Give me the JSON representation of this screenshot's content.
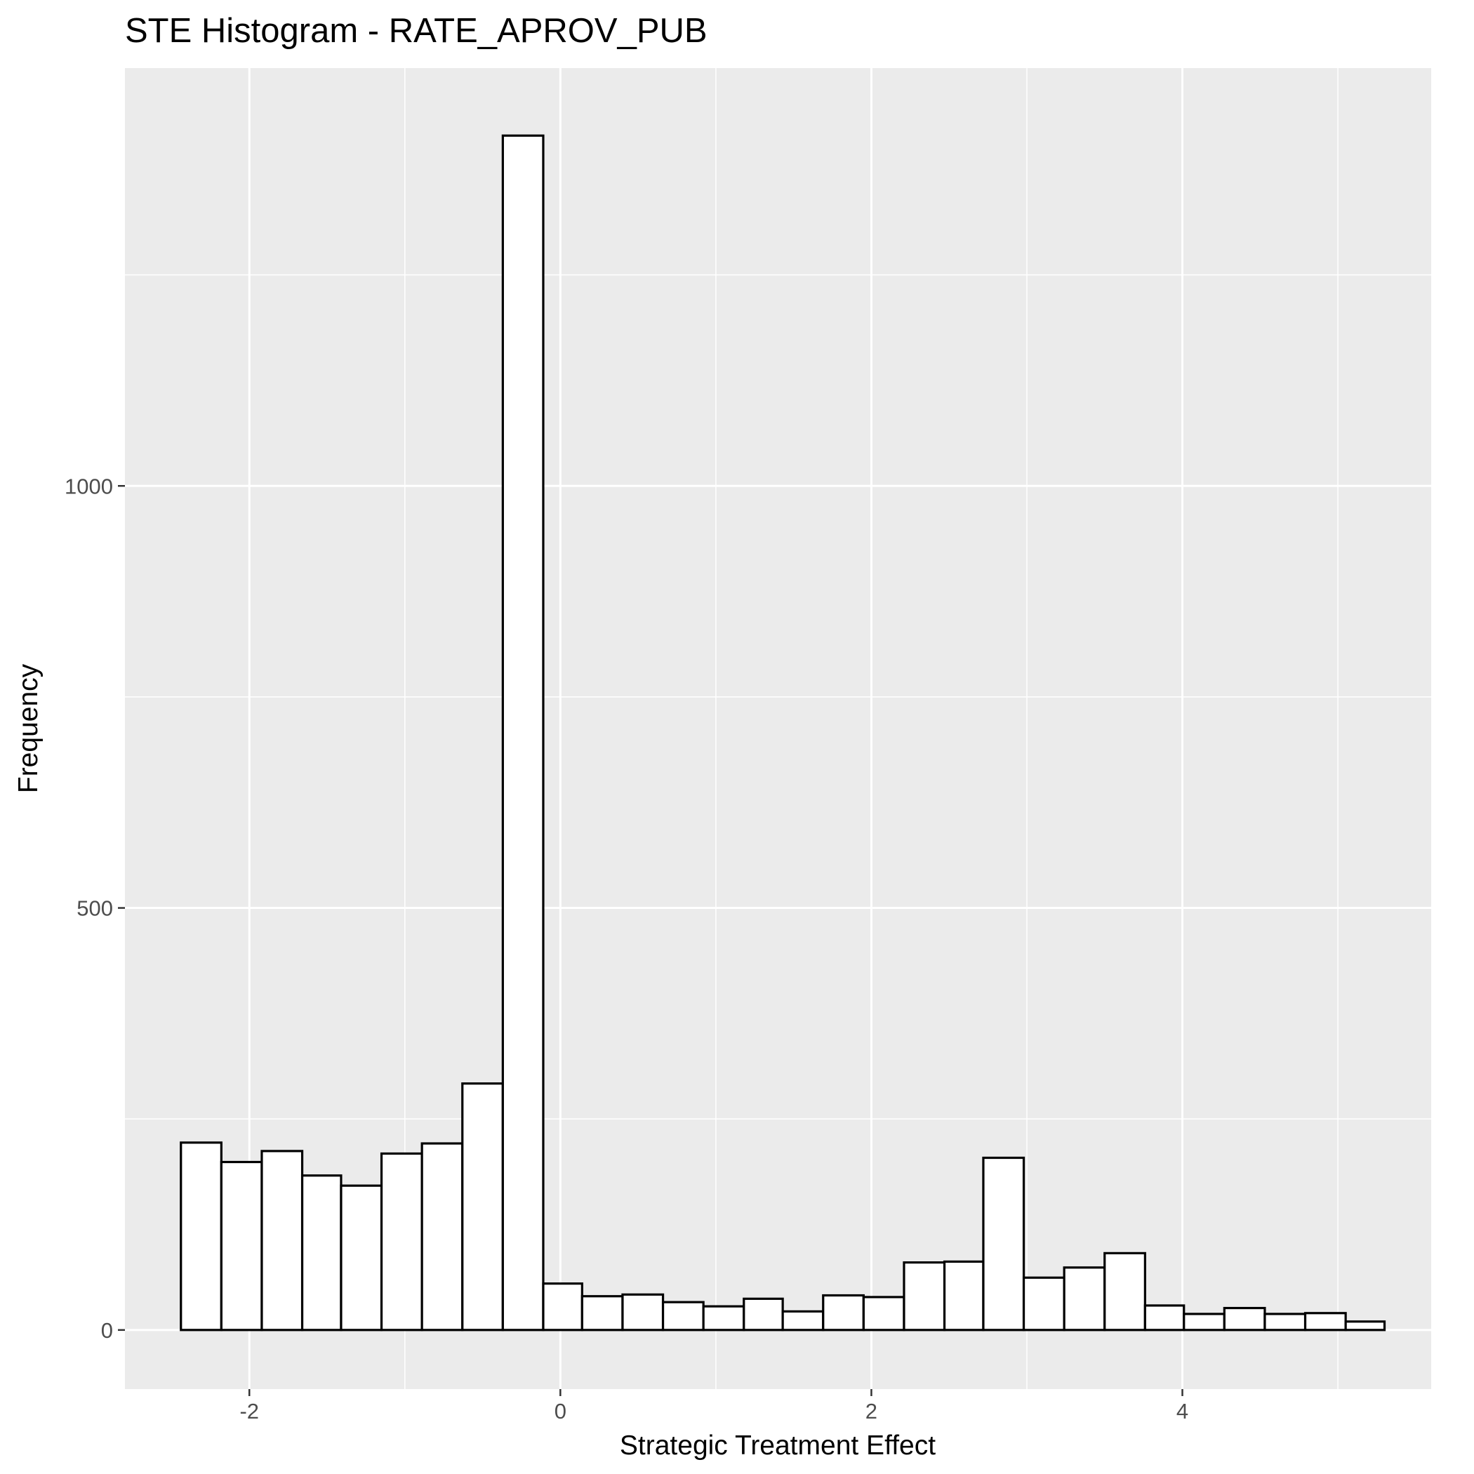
{
  "chart_data": {
    "type": "bar",
    "subtype": "histogram",
    "title": "STE Histogram -  RATE_APROV_PUB",
    "xlabel": "Strategic Treatment Effect",
    "ylabel": "Frequency",
    "x_range": [
      -2.8,
      5.6
    ],
    "y_range": [
      -70,
      1495
    ],
    "x_ticks": [
      -2,
      0,
      2,
      4
    ],
    "x_tick_labels": [
      "-2",
      "0",
      "2",
      "4"
    ],
    "y_ticks": [
      0,
      500,
      1000
    ],
    "y_tick_labels": [
      "0",
      "500",
      "1000"
    ],
    "x_minor_ticks": [
      -1,
      1,
      3,
      5
    ],
    "y_minor_ticks": [
      250,
      750,
      1250
    ],
    "grid": true,
    "bins": [
      {
        "x0": -2.44,
        "x1": -2.18,
        "count": 222
      },
      {
        "x0": -2.18,
        "x1": -1.92,
        "count": 199
      },
      {
        "x0": -1.92,
        "x1": -1.66,
        "count": 212
      },
      {
        "x0": -1.66,
        "x1": -1.41,
        "count": 183
      },
      {
        "x0": -1.41,
        "x1": -1.15,
        "count": 171
      },
      {
        "x0": -1.15,
        "x1": -0.89,
        "count": 209
      },
      {
        "x0": -0.89,
        "x1": -0.63,
        "count": 221
      },
      {
        "x0": -0.63,
        "x1": -0.37,
        "count": 292
      },
      {
        "x0": -0.37,
        "x1": -0.11,
        "count": 1415
      },
      {
        "x0": -0.11,
        "x1": 0.14,
        "count": 55
      },
      {
        "x0": 0.14,
        "x1": 0.4,
        "count": 40
      },
      {
        "x0": 0.4,
        "x1": 0.66,
        "count": 42
      },
      {
        "x0": 0.66,
        "x1": 0.92,
        "count": 33
      },
      {
        "x0": 0.92,
        "x1": 1.18,
        "count": 28
      },
      {
        "x0": 1.18,
        "x1": 1.43,
        "count": 37
      },
      {
        "x0": 1.43,
        "x1": 1.69,
        "count": 22
      },
      {
        "x0": 1.69,
        "x1": 1.95,
        "count": 41
      },
      {
        "x0": 1.95,
        "x1": 2.21,
        "count": 39
      },
      {
        "x0": 2.21,
        "x1": 2.47,
        "count": 80
      },
      {
        "x0": 2.47,
        "x1": 2.72,
        "count": 81
      },
      {
        "x0": 2.72,
        "x1": 2.98,
        "count": 204
      },
      {
        "x0": 2.98,
        "x1": 3.24,
        "count": 62
      },
      {
        "x0": 3.24,
        "x1": 3.5,
        "count": 74
      },
      {
        "x0": 3.5,
        "x1": 3.76,
        "count": 91
      },
      {
        "x0": 3.76,
        "x1": 4.01,
        "count": 29
      },
      {
        "x0": 4.01,
        "x1": 4.27,
        "count": 19
      },
      {
        "x0": 4.27,
        "x1": 4.53,
        "count": 26
      },
      {
        "x0": 4.53,
        "x1": 4.79,
        "count": 19
      },
      {
        "x0": 4.79,
        "x1": 5.05,
        "count": 20
      },
      {
        "x0": 5.05,
        "x1": 5.3,
        "count": 10
      }
    ],
    "colors": {
      "panel_bg": "#EBEBEB",
      "grid_major": "#FFFFFF",
      "grid_minor": "#FFFFFF",
      "bar_fill": "#FFFFFF",
      "bar_stroke": "#000000",
      "tick_color": "#333333"
    }
  }
}
